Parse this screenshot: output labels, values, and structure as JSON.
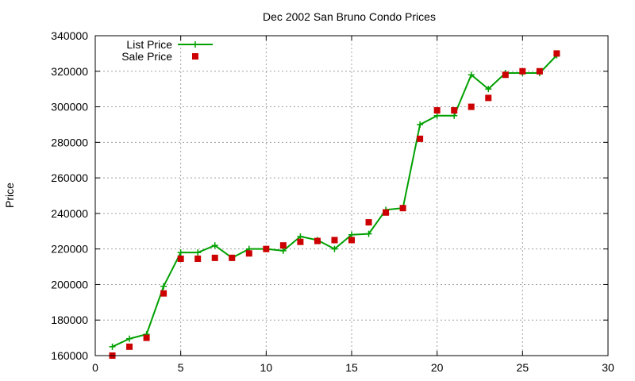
{
  "chart_data": {
    "type": "line",
    "title": "Dec 2002 San Bruno Condo Prices",
    "xlabel": "",
    "ylabel": "Price",
    "xlim": [
      0,
      30
    ],
    "ylim": [
      160000,
      340000
    ],
    "xticks": [
      0,
      5,
      10,
      15,
      20,
      25,
      30
    ],
    "yticks": [
      160000,
      180000,
      200000,
      220000,
      240000,
      260000,
      280000,
      300000,
      320000,
      340000
    ],
    "xtick_labels": [
      "0",
      "5",
      "10",
      "15",
      "20",
      "25",
      "30"
    ],
    "ytick_labels": [
      "160000",
      "180000",
      "200000",
      "220000",
      "240000",
      "260000",
      "280000",
      "300000",
      "320000",
      "340000"
    ],
    "grid": true,
    "legend_position": "top-left",
    "series": [
      {
        "name": "List Price",
        "style": "line-with-plus-markers",
        "color": "#00a000",
        "x": [
          1,
          2,
          3,
          4,
          5,
          6,
          7,
          8,
          9,
          10,
          11,
          12,
          13,
          14,
          15,
          16,
          17,
          18,
          19,
          20,
          21,
          22,
          23,
          24,
          25,
          26,
          27
        ],
        "y": [
          165000,
          169500,
          172000,
          199000,
          218000,
          218000,
          222000,
          215000,
          220000,
          220000,
          219000,
          227000,
          225000,
          220000,
          228000,
          228500,
          242000,
          243000,
          290000,
          295000,
          295000,
          318000,
          310000,
          319000,
          319000,
          319000,
          329000
        ]
      },
      {
        "name": "Sale Price",
        "style": "square-markers",
        "color": "#cc0000",
        "x": [
          1,
          2,
          3,
          4,
          5,
          6,
          7,
          8,
          9,
          10,
          11,
          12,
          13,
          14,
          15,
          16,
          17,
          18,
          19,
          20,
          21,
          22,
          23,
          24,
          25,
          26,
          27
        ],
        "y": [
          160000,
          165000,
          170000,
          195000,
          214500,
          214500,
          215000,
          215000,
          217500,
          220000,
          222000,
          224000,
          224500,
          225000,
          225000,
          235000,
          240500,
          243000,
          282000,
          298000,
          298000,
          300000,
          305000,
          318000,
          320000,
          320000,
          330000
        ]
      }
    ]
  }
}
